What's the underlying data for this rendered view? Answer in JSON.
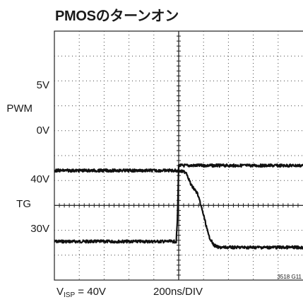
{
  "chart_data": {
    "type": "line",
    "title": "PMOSのターンオン",
    "x": {
      "label": "200ns/DIV",
      "divisions": 10,
      "unit_per_div": "200ns"
    },
    "grid": true,
    "condition": {
      "symbol": "V",
      "subscript": "ISP",
      "rest": " = 40V"
    },
    "figure_id": "3518 G11",
    "channels": [
      {
        "name": "PWM",
        "level_labels": [
          "5V",
          "0V"
        ],
        "label_low": "0V",
        "label_high": "5V",
        "low_div": 1.55,
        "high_div": 4.6,
        "points": [
          [
            0,
            0
          ],
          [
            4.9,
            0
          ],
          [
            4.95,
            0.3
          ],
          [
            5.0,
            1.0
          ],
          [
            5.08,
            1.0
          ],
          [
            10,
            1.0
          ]
        ]
      },
      {
        "name": "TG",
        "level_labels": [
          "40V",
          "30V"
        ],
        "label_low": "30V",
        "label_high": "40V",
        "low_div": 1.15,
        "high_div": 4.4,
        "points": [
          [
            0,
            1.0
          ],
          [
            4.85,
            1.0
          ],
          [
            5.3,
            0.98
          ],
          [
            5.5,
            0.82
          ],
          [
            5.75,
            0.72
          ],
          [
            6.0,
            0.45
          ],
          [
            6.2,
            0.2
          ],
          [
            6.4,
            0.08
          ],
          [
            6.6,
            0.05
          ],
          [
            10,
            0.05
          ]
        ]
      }
    ],
    "labels": {
      "v5": "5V",
      "pwm": "PWM",
      "v0": "0V",
      "v40": "40V",
      "tg": "TG",
      "v30": "30V"
    }
  }
}
